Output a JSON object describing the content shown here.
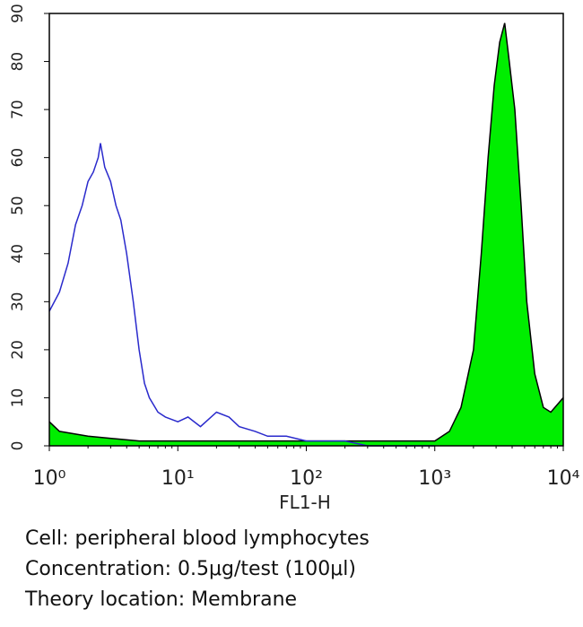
{
  "chart_data": {
    "type": "histogram-overlay",
    "xlabel": "FL1-H",
    "xscale": "log",
    "xlim": [
      1,
      10000
    ],
    "xticks": [
      {
        "value": 1,
        "label": "10⁰"
      },
      {
        "value": 10,
        "label": "10¹"
      },
      {
        "value": 100,
        "label": "10²"
      },
      {
        "value": 1000,
        "label": "10³"
      },
      {
        "value": 10000,
        "label": "10⁴"
      }
    ],
    "ylim": [
      0,
      90
    ],
    "yticks": [
      0,
      10,
      20,
      30,
      40,
      50,
      60,
      70,
      80,
      90
    ],
    "series": [
      {
        "color": "#00ee00",
        "fill": true,
        "outline": "#000000",
        "x": [
          1,
          1.2,
          2,
          5,
          10,
          30,
          100,
          300,
          1000,
          1300,
          1600,
          2000,
          2300,
          2600,
          2900,
          3200,
          3500,
          3800,
          4200,
          4700,
          5200,
          6000,
          7000,
          8000,
          10000
        ],
        "values": [
          5,
          3,
          2,
          1,
          1,
          1,
          1,
          1,
          1,
          3,
          8,
          20,
          40,
          60,
          75,
          84,
          88,
          80,
          70,
          50,
          30,
          15,
          8,
          7,
          10
        ]
      },
      {
        "color": "#2a2acc",
        "fill": false,
        "x": [
          1,
          1.2,
          1.4,
          1.6,
          1.8,
          2,
          2.2,
          2.4,
          2.5,
          2.7,
          3,
          3.3,
          3.6,
          4,
          4.5,
          5,
          5.5,
          6,
          7,
          8,
          10,
          12,
          15,
          20,
          25,
          30,
          40,
          50,
          70,
          100,
          150,
          200,
          300,
          500,
          1000
        ],
        "values": [
          28,
          32,
          38,
          46,
          50,
          55,
          57,
          60,
          63,
          58,
          55,
          50,
          47,
          40,
          30,
          20,
          13,
          10,
          7,
          6,
          5,
          6,
          4,
          7,
          6,
          4,
          3,
          2,
          2,
          1,
          1,
          1,
          0,
          0,
          0
        ]
      }
    ]
  },
  "caption_lines": [
    "Cell: peripheral blood lymphocytes",
    "Concentration: 0.5μg/test (100μl)",
    "Theory location: Membrane"
  ]
}
